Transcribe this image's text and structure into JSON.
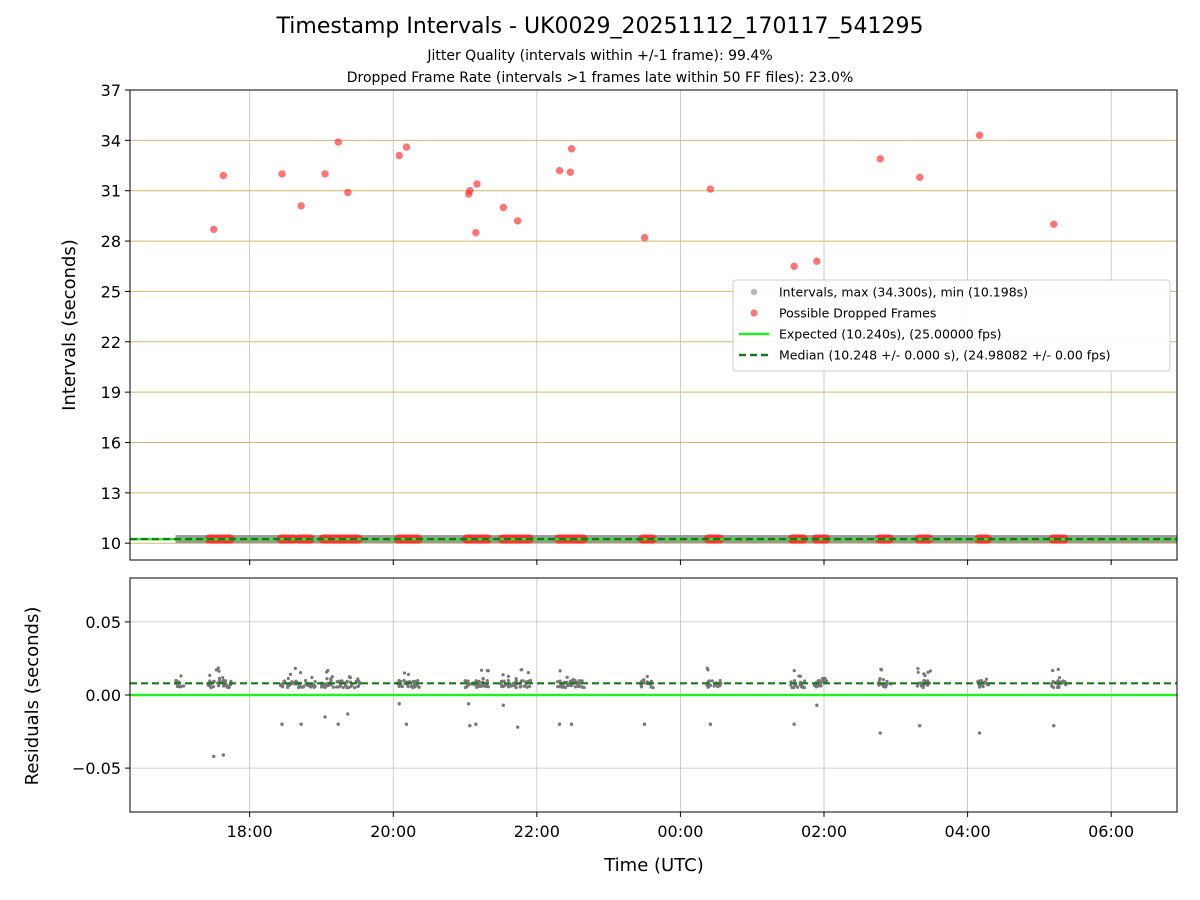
{
  "chart_data": [
    {
      "type": "scatter",
      "panel": "intervals",
      "title": "Timestamp Intervals - UK0029_20251112_170117_541295",
      "subtitle1": "Jitter Quality (intervals within +/-1 frame): 99.4%",
      "subtitle2": "Dropped Frame Rate (intervals >1 frames late within 50 FF files): 23.0%",
      "xlabel": "",
      "ylabel": "Intervals (seconds)",
      "xlim": [
        "16:20",
        "06:55"
      ],
      "ylim": [
        9,
        37
      ],
      "yticks": [
        10,
        13,
        16,
        19,
        22,
        25,
        28,
        31,
        34,
        37
      ],
      "ytick_labels": [
        "10",
        "13",
        "16",
        "19",
        "22",
        "25",
        "28",
        "31",
        "34",
        "37"
      ],
      "grid": true,
      "horizontal_grid_color": "#d4b86a",
      "legend": "center-right",
      "legend_entries": [
        "Intervals, max (34.300s), min (10.198s)",
        "Possible Dropped Frames",
        "Expected (10.240s), (25.00000 fps)",
        "Median (10.248 +/- 0.000 s), (24.98082 +/- 0.00 fps)"
      ],
      "series": [
        {
          "name": "Possible Dropped Frames",
          "color": "#ff2a2a",
          "points": [
            {
              "x": "17:30",
              "y": 28.7
            },
            {
              "x": "17:38",
              "y": 31.9
            },
            {
              "x": "18:27",
              "y": 32.0
            },
            {
              "x": "18:43",
              "y": 30.1
            },
            {
              "x": "19:03",
              "y": 32.0
            },
            {
              "x": "19:14",
              "y": 33.9
            },
            {
              "x": "19:22",
              "y": 30.9
            },
            {
              "x": "20:05",
              "y": 33.1
            },
            {
              "x": "20:11",
              "y": 33.6
            },
            {
              "x": "21:03",
              "y": 30.8
            },
            {
              "x": "21:04",
              "y": 31.0
            },
            {
              "x": "21:09",
              "y": 28.5
            },
            {
              "x": "21:10",
              "y": 31.4
            },
            {
              "x": "21:32",
              "y": 30.0
            },
            {
              "x": "21:44",
              "y": 29.2
            },
            {
              "x": "22:19",
              "y": 32.2
            },
            {
              "x": "22:28",
              "y": 32.1
            },
            {
              "x": "22:29",
              "y": 33.5
            },
            {
              "x": "23:30",
              "y": 28.2
            },
            {
              "x": "00:25",
              "y": 31.1
            },
            {
              "x": "01:35",
              "y": 26.5
            },
            {
              "x": "01:54",
              "y": 26.8
            },
            {
              "x": "02:47",
              "y": 32.9
            },
            {
              "x": "03:20",
              "y": 31.8
            },
            {
              "x": "04:10",
              "y": 34.3
            },
            {
              "x": "05:12",
              "y": 29.0
            }
          ],
          "baseline_clusters": [
            {
              "start": "17:25",
              "end": "17:45",
              "y": 10.248
            },
            {
              "start": "18:25",
              "end": "18:38",
              "y": 10.248
            },
            {
              "start": "18:40",
              "end": "18:52",
              "y": 10.248
            },
            {
              "start": "19:00",
              "end": "19:32",
              "y": 10.248
            },
            {
              "start": "20:03",
              "end": "20:22",
              "y": 10.248
            },
            {
              "start": "21:00",
              "end": "21:20",
              "y": 10.248
            },
            {
              "start": "21:30",
              "end": "21:55",
              "y": 10.248
            },
            {
              "start": "22:17",
              "end": "22:40",
              "y": 10.248
            },
            {
              "start": "23:27",
              "end": "23:38",
              "y": 10.248
            },
            {
              "start": "00:22",
              "end": "00:34",
              "y": 10.248
            },
            {
              "start": "01:32",
              "end": "01:44",
              "y": 10.248
            },
            {
              "start": "01:52",
              "end": "02:03",
              "y": 10.248
            },
            {
              "start": "02:45",
              "end": "02:56",
              "y": 10.248
            },
            {
              "start": "03:18",
              "end": "03:29",
              "y": 10.248
            },
            {
              "start": "04:08",
              "end": "04:18",
              "y": 10.248
            },
            {
              "start": "05:10",
              "end": "05:22",
              "y": 10.248
            }
          ]
        },
        {
          "name": "Intervals, max (34.300s), min (10.198s)",
          "color": "#888888",
          "range": {
            "start": "16:58",
            "end": "06:55",
            "y": 10.248
          }
        },
        {
          "name": "Expected (10.240s), (25.00000 fps)",
          "color": "#22ee22",
          "y": 10.24
        },
        {
          "name": "Median (10.248 +/- 0.000 s), (24.98082 +/- 0.00 fps)",
          "color": "#1a7a1a",
          "y": 10.248
        }
      ]
    },
    {
      "type": "scatter",
      "panel": "residuals",
      "xlabel": "Time (UTC)",
      "ylabel": "Residuals (seconds)",
      "xlim": [
        "16:20",
        "06:55"
      ],
      "ylim": [
        -0.08,
        0.08
      ],
      "xticks": [
        "18:00",
        "20:00",
        "22:00",
        "00:00",
        "02:00",
        "04:00",
        "06:00"
      ],
      "yticks": [
        0.05,
        0.0,
        -0.05
      ],
      "ytick_labels": [
        "0.05",
        "0.00",
        "−0.05"
      ],
      "grid": true,
      "expected_line": {
        "y": 0.0,
        "color": "#22ee22"
      },
      "median_line": {
        "y": 0.008,
        "color": "#1a7a1a"
      },
      "point_color": "#777777",
      "clusters": [
        {
          "start": "16:58",
          "end": "17:05"
        },
        {
          "start": "17:25",
          "end": "17:45"
        },
        {
          "start": "18:25",
          "end": "18:55"
        },
        {
          "start": "19:00",
          "end": "19:32"
        },
        {
          "start": "20:03",
          "end": "20:22"
        },
        {
          "start": "21:00",
          "end": "21:20"
        },
        {
          "start": "21:30",
          "end": "21:55"
        },
        {
          "start": "22:17",
          "end": "22:40"
        },
        {
          "start": "23:27",
          "end": "23:38"
        },
        {
          "start": "00:22",
          "end": "00:34"
        },
        {
          "start": "01:32",
          "end": "01:44"
        },
        {
          "start": "01:52",
          "end": "02:03"
        },
        {
          "start": "02:45",
          "end": "02:56"
        },
        {
          "start": "03:18",
          "end": "03:29"
        },
        {
          "start": "04:08",
          "end": "04:18"
        },
        {
          "start": "05:10",
          "end": "05:22"
        }
      ],
      "outliers": [
        {
          "x": "17:30",
          "y": -0.042
        },
        {
          "x": "17:38",
          "y": -0.041
        },
        {
          "x": "18:27",
          "y": -0.02
        },
        {
          "x": "18:43",
          "y": -0.02
        },
        {
          "x": "19:03",
          "y": -0.015
        },
        {
          "x": "19:14",
          "y": -0.02
        },
        {
          "x": "19:22",
          "y": -0.013
        },
        {
          "x": "20:05",
          "y": -0.006
        },
        {
          "x": "20:11",
          "y": -0.02
        },
        {
          "x": "21:03",
          "y": -0.006
        },
        {
          "x": "21:04",
          "y": -0.021
        },
        {
          "x": "21:09",
          "y": -0.02
        },
        {
          "x": "21:32",
          "y": -0.007
        },
        {
          "x": "21:44",
          "y": -0.022
        },
        {
          "x": "22:19",
          "y": -0.02
        },
        {
          "x": "22:29",
          "y": -0.02
        },
        {
          "x": "23:30",
          "y": -0.02
        },
        {
          "x": "00:25",
          "y": -0.02
        },
        {
          "x": "01:35",
          "y": -0.02
        },
        {
          "x": "01:54",
          "y": -0.007
        },
        {
          "x": "02:47",
          "y": -0.026
        },
        {
          "x": "03:20",
          "y": -0.021
        },
        {
          "x": "04:10",
          "y": -0.026
        },
        {
          "x": "05:12",
          "y": -0.021
        }
      ]
    }
  ]
}
